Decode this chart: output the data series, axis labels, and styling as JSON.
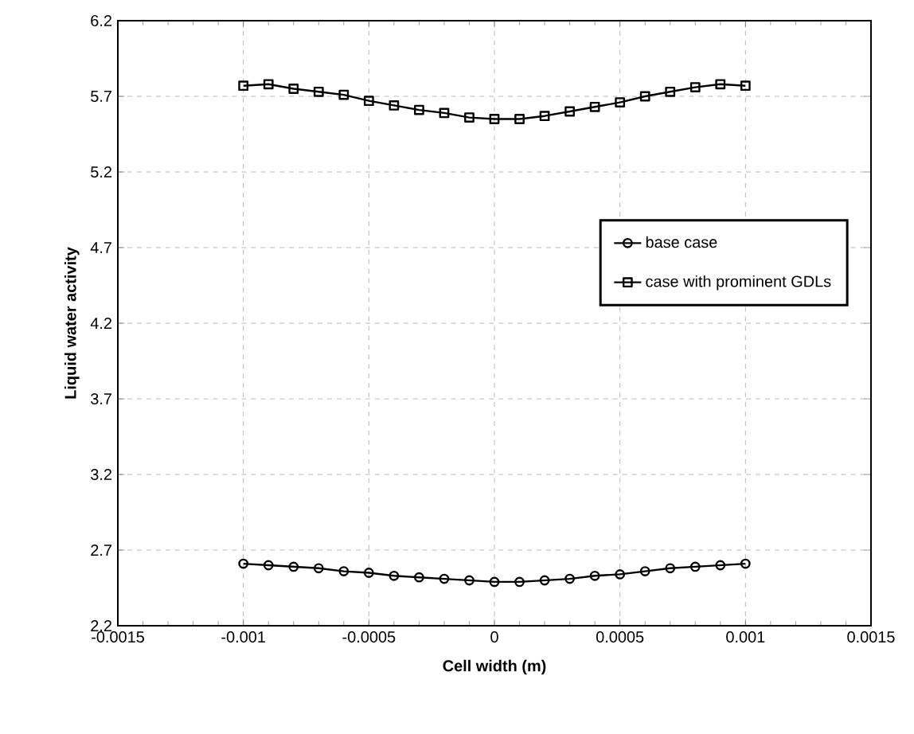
{
  "chart_data": {
    "type": "line",
    "xlabel": "Cell width (m)",
    "ylabel": "Liquid water activity",
    "xlim": [
      -0.0015,
      0.0015
    ],
    "xticks": [
      -0.0015,
      -0.001,
      -0.0005,
      0,
      0.0005,
      0.001,
      0.0015
    ],
    "ylim": [
      2.2,
      6.2
    ],
    "yticks": [
      2.2,
      2.7,
      3.2,
      3.7,
      4.2,
      4.7,
      5.2,
      5.7,
      6.2
    ],
    "grid": true,
    "legend": "right",
    "x": [
      -0.001,
      -0.0009,
      -0.0008,
      -0.0007,
      -0.0006,
      -0.0005,
      -0.0004,
      -0.0003,
      -0.0002,
      -0.0001,
      0,
      0.0001,
      0.0002,
      0.0003,
      0.0004,
      0.0005,
      0.0006,
      0.0007,
      0.0008,
      0.0009,
      0.001
    ],
    "series": [
      {
        "name": "base case",
        "color": "#000000",
        "marker": "circle",
        "values": [
          2.61,
          2.6,
          2.59,
          2.58,
          2.56,
          2.55,
          2.53,
          2.52,
          2.51,
          2.5,
          2.49,
          2.49,
          2.5,
          2.51,
          2.53,
          2.54,
          2.56,
          2.58,
          2.59,
          2.6,
          2.61
        ]
      },
      {
        "name": "case with prominent GDLs",
        "color": "#000000",
        "marker": "square",
        "values": [
          5.77,
          5.78,
          5.75,
          5.73,
          5.71,
          5.67,
          5.64,
          5.61,
          5.59,
          5.56,
          5.55,
          5.55,
          5.57,
          5.6,
          5.63,
          5.66,
          5.7,
          5.73,
          5.76,
          5.78,
          5.77
        ]
      }
    ]
  }
}
